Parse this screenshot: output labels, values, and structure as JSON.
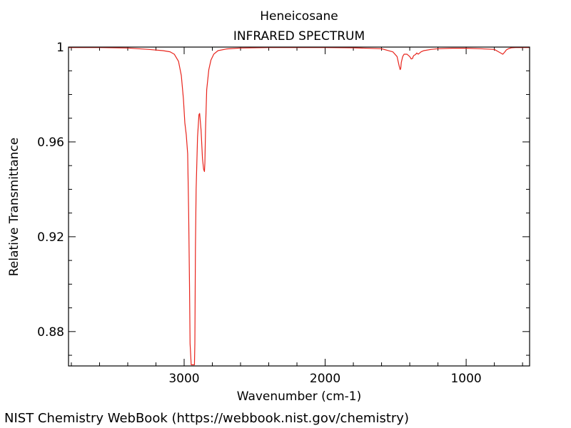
{
  "chart_data": {
    "type": "line",
    "title": "Heneicosane",
    "subtitle": "INFRARED SPECTRUM",
    "xlabel": "Wavenumber (cm-1)",
    "ylabel": "Relative Transmittance",
    "xlim": [
      3820,
      550
    ],
    "ylim": [
      0.8655,
      1.0
    ],
    "x_ticks": [
      {
        "value": 3000,
        "label": "3000"
      },
      {
        "value": 2000,
        "label": "2000"
      },
      {
        "value": 1000,
        "label": "1000"
      }
    ],
    "y_ticks": [
      {
        "value": 1.0,
        "label": "1"
      },
      {
        "value": 0.96,
        "label": "0.96"
      },
      {
        "value": 0.92,
        "label": "0.92"
      },
      {
        "value": 0.88,
        "label": "0.88"
      }
    ],
    "line_color": "#e8241c",
    "series": [
      {
        "name": "Heneicosane",
        "x": [
          3820,
          3600,
          3400,
          3250,
          3150,
          3100,
          3070,
          3040,
          3020,
          3005,
          2995,
          2985,
          2975,
          2968,
          2962,
          2958,
          2950,
          2940,
          2930,
          2927,
          2924,
          2920,
          2915,
          2905,
          2895,
          2890,
          2880,
          2870,
          2862,
          2856,
          2853,
          2848,
          2840,
          2825,
          2810,
          2790,
          2760,
          2700,
          2600,
          2400,
          2200,
          2000,
          1800,
          1600,
          1520,
          1490,
          1475,
          1468,
          1464,
          1460,
          1450,
          1440,
          1420,
          1400,
          1390,
          1380,
          1376,
          1370,
          1360,
          1350,
          1340,
          1320,
          1300,
          1250,
          1200,
          1100,
          1000,
          900,
          800,
          770,
          740,
          725,
          715,
          700,
          680,
          650,
          600,
          550
        ],
        "y": [
          0.9998,
          0.9998,
          0.9996,
          0.999,
          0.9985,
          0.998,
          0.997,
          0.994,
          0.988,
          0.978,
          0.968,
          0.963,
          0.955,
          0.93,
          0.9,
          0.875,
          0.866,
          0.866,
          0.866,
          0.866,
          0.875,
          0.915,
          0.94,
          0.962,
          0.9715,
          0.972,
          0.965,
          0.953,
          0.9485,
          0.9475,
          0.951,
          0.966,
          0.982,
          0.9905,
          0.9945,
          0.997,
          0.9985,
          0.9992,
          0.9996,
          0.9998,
          0.9998,
          0.9998,
          0.9997,
          0.9993,
          0.998,
          0.996,
          0.992,
          0.9905,
          0.991,
          0.9935,
          0.996,
          0.997,
          0.997,
          0.996,
          0.995,
          0.9952,
          0.996,
          0.9965,
          0.9968,
          0.9975,
          0.997,
          0.998,
          0.9985,
          0.999,
          0.9993,
          0.9995,
          0.9995,
          0.9993,
          0.999,
          0.998,
          0.997,
          0.998,
          0.9988,
          0.9993,
          0.9997,
          0.9998,
          0.9998,
          0.9998
        ]
      }
    ]
  },
  "footer": "NIST Chemistry WebBook (https://webbook.nist.gov/chemistry)"
}
